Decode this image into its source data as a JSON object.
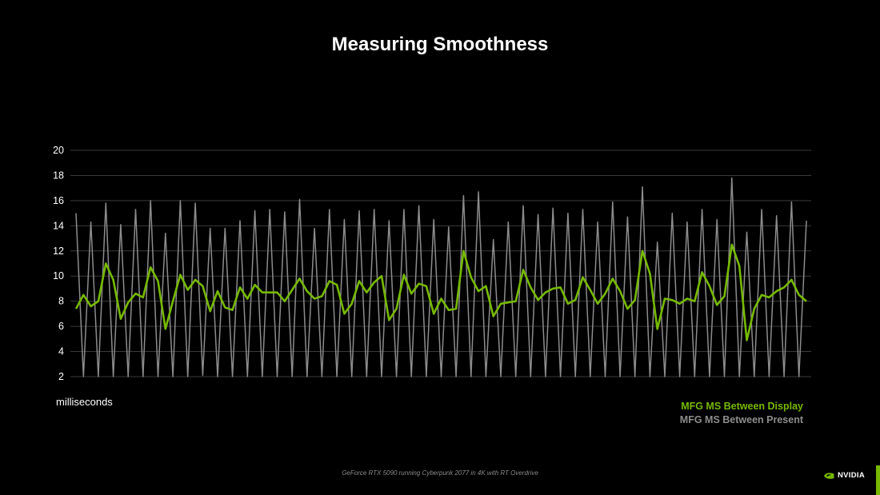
{
  "title": "Measuring Smoothness",
  "unit_label": "milliseconds",
  "footnote": "GeForce RTX 5090 running Cyberpunk 2077 in 4K with RT Overdrive",
  "logo_text": "NVIDIA",
  "colors": {
    "display": "#76b900",
    "present": "#8c8c8c",
    "grid": "#3a3a3a",
    "accent": "#76b900"
  },
  "chart_data": {
    "type": "line",
    "title": "Measuring Smoothness",
    "ylabel": "milliseconds",
    "ylim": [
      2,
      20
    ],
    "yticks": [
      2,
      4,
      6,
      8,
      10,
      12,
      14,
      16,
      18,
      20
    ],
    "grid": true,
    "legend_position": "bottom-right",
    "series": [
      {
        "name": "MFG MS Between Display",
        "values": [
          7.4,
          8.5,
          7.6,
          8.0,
          11.0,
          9.7,
          6.6,
          7.9,
          8.6,
          8.3,
          10.7,
          9.6,
          5.8,
          8.0,
          10.1,
          8.9,
          9.7,
          9.2,
          7.2,
          8.8,
          7.5,
          7.3,
          9.1,
          8.2,
          9.3,
          8.7,
          8.7,
          8.7,
          8.0,
          8.9,
          9.8,
          8.8,
          8.2,
          8.4,
          9.6,
          9.3,
          7.0,
          7.8,
          9.6,
          8.7,
          9.5,
          10.0,
          6.5,
          7.4,
          10.1,
          8.6,
          9.4,
          9.2,
          7.0,
          8.2,
          7.3,
          7.4,
          12.0,
          9.9,
          8.8,
          9.2,
          6.8,
          7.8,
          7.9,
          8.0,
          10.5,
          9.1,
          8.1,
          8.7,
          9.0,
          9.1,
          7.8,
          8.1,
          9.9,
          8.9,
          7.8,
          8.6,
          9.8,
          8.8,
          7.4,
          8.1,
          12.0,
          10.2,
          5.8,
          8.2,
          8.1,
          7.8,
          8.2,
          8.0,
          10.3,
          9.2,
          7.7,
          8.4,
          12.5,
          10.8,
          4.9,
          7.4,
          8.5,
          8.3,
          8.8,
          9.1,
          9.7,
          8.5,
          8.0
        ]
      },
      {
        "name": "MFG MS Between Present",
        "values": [
          15.0,
          2.0,
          14.3,
          2.0,
          15.8,
          2.0,
          14.1,
          2.0,
          15.3,
          2.0,
          16.0,
          2.0,
          13.4,
          2.0,
          16.0,
          2.0,
          15.8,
          2.1,
          13.8,
          2.0,
          13.8,
          2.0,
          14.4,
          2.0,
          15.2,
          2.0,
          15.3,
          2.0,
          15.1,
          2.0,
          16.1,
          2.0,
          13.8,
          2.0,
          15.3,
          2.0,
          14.5,
          2.0,
          15.2,
          2.0,
          15.3,
          2.0,
          14.4,
          2.0,
          15.3,
          2.0,
          15.6,
          2.0,
          14.5,
          2.0,
          13.9,
          2.0,
          16.4,
          2.0,
          16.7,
          2.0,
          12.9,
          2.0,
          14.3,
          2.0,
          15.6,
          2.0,
          14.9,
          2.0,
          15.4,
          2.0,
          15.0,
          2.0,
          15.3,
          2.0,
          14.3,
          2.0,
          15.9,
          2.0,
          14.7,
          2.0,
          17.1,
          2.0,
          12.7,
          2.0,
          15.0,
          2.0,
          14.3,
          2.0,
          15.3,
          2.0,
          14.5,
          2.0,
          17.8,
          2.0,
          13.5,
          2.0,
          15.3,
          2.0,
          14.8,
          2.0,
          15.9,
          2.0,
          14.4
        ]
      }
    ]
  }
}
